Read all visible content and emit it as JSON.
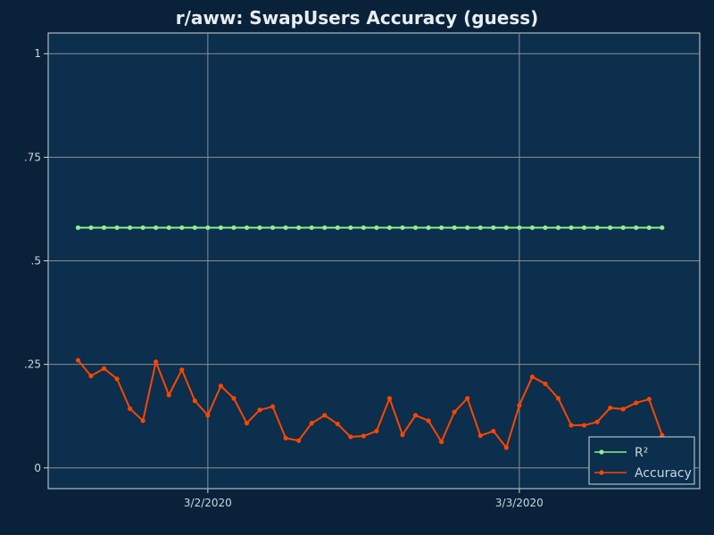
{
  "chart_data": {
    "type": "line",
    "title": "r/aww: SwapUsers Accuracy (guess)",
    "xlabel": "",
    "ylabel": "",
    "x_tick_labels": [
      {
        "label": "3/2/2020",
        "at": 10
      },
      {
        "label": "3/3/2020",
        "at": 34
      }
    ],
    "y_tick_labels": [
      {
        "label": "0",
        "value": 0
      },
      {
        "label": ".25",
        "value": 0.25
      },
      {
        "label": ".5",
        "value": 0.5
      },
      {
        "label": ".75",
        "value": 0.75
      },
      {
        "label": "1",
        "value": 1
      }
    ],
    "xlim": [
      -2.3,
      47.9
    ],
    "ylim": [
      -0.05,
      1.05
    ],
    "grid": true,
    "legend_position": "bottom-right",
    "series": [
      {
        "name": "R²",
        "color": "#90ee90",
        "values": [
          0.58,
          0.58,
          0.58,
          0.58,
          0.58,
          0.58,
          0.58,
          0.58,
          0.58,
          0.58,
          0.58,
          0.58,
          0.58,
          0.58,
          0.58,
          0.58,
          0.58,
          0.58,
          0.58,
          0.58,
          0.58,
          0.58,
          0.58,
          0.58,
          0.58,
          0.58,
          0.58,
          0.58,
          0.58,
          0.58,
          0.58,
          0.58,
          0.58,
          0.58,
          0.58,
          0.58,
          0.58,
          0.58,
          0.58,
          0.58,
          0.58,
          0.58,
          0.58,
          0.58,
          0.58,
          0.58
        ]
      },
      {
        "name": "Accuracy",
        "color": "#ff4500",
        "values": [
          0.26,
          0.222,
          0.24,
          0.215,
          0.143,
          0.114,
          0.256,
          0.176,
          0.237,
          0.162,
          0.127,
          0.198,
          0.168,
          0.108,
          0.14,
          0.148,
          0.072,
          0.066,
          0.108,
          0.127,
          0.106,
          0.075,
          0.077,
          0.089,
          0.168,
          0.08,
          0.127,
          0.114,
          0.063,
          0.135,
          0.168,
          0.078,
          0.089,
          0.049,
          0.151,
          0.22,
          0.203,
          0.168,
          0.103,
          0.103,
          0.111,
          0.145,
          0.142,
          0.157,
          0.166,
          0.079
        ]
      }
    ]
  }
}
